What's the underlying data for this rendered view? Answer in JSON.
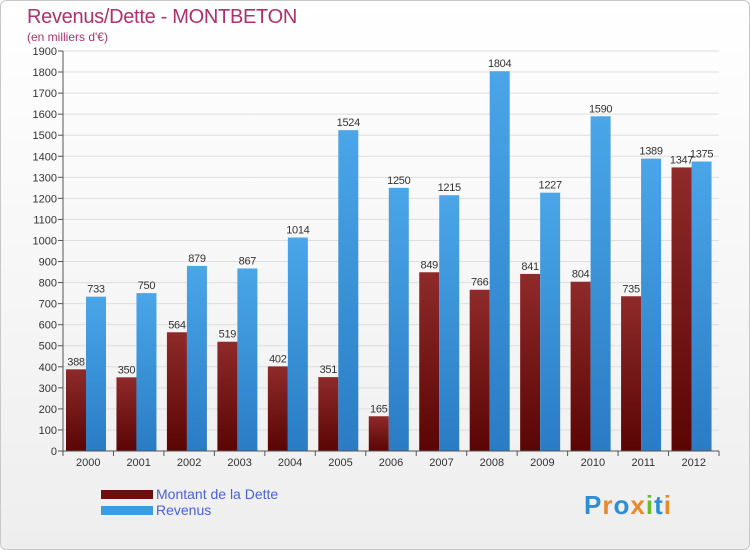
{
  "header": {
    "title": "Revenus/Dette - MONTBETON",
    "subtitle": "(en milliers d'€)"
  },
  "chart_data": {
    "type": "bar",
    "categories": [
      "2000",
      "2001",
      "2002",
      "2003",
      "2004",
      "2005",
      "2006",
      "2007",
      "2008",
      "2009",
      "2010",
      "2011",
      "2012"
    ],
    "series": [
      {
        "name": "Montant de la Dette",
        "color": "#7a1a1a",
        "values": [
          388,
          350,
          564,
          519,
          402,
          351,
          165,
          849,
          766,
          841,
          804,
          735,
          1347
        ]
      },
      {
        "name": "Revenus",
        "color": "#3d9be0",
        "values": [
          733,
          750,
          879,
          867,
          1014,
          1524,
          1250,
          1215,
          1804,
          1227,
          1590,
          1389,
          1375
        ]
      }
    ],
    "ylim": [
      0,
      1900
    ],
    "yticks": [
      0,
      100,
      200,
      300,
      400,
      500,
      600,
      700,
      800,
      900,
      1000,
      1100,
      1200,
      1300,
      1400,
      1500,
      1600,
      1700,
      1800,
      1900
    ],
    "grid": true,
    "legend_position": "bottom-left"
  },
  "legend": {
    "items": [
      {
        "label": "Montant de la Dette",
        "color": "#6b0f0f"
      },
      {
        "label": "Revenus",
        "color": "#3d9be0"
      }
    ]
  },
  "brand": {
    "letters": [
      "P",
      "r",
      "o",
      "x",
      "i",
      "t",
      "i"
    ],
    "colors": [
      "#2c8fd6",
      "#e8892b",
      "#2c8fd6",
      "#e8892b",
      "#6cba2d",
      "#2c8fd6",
      "#e8892b"
    ]
  }
}
